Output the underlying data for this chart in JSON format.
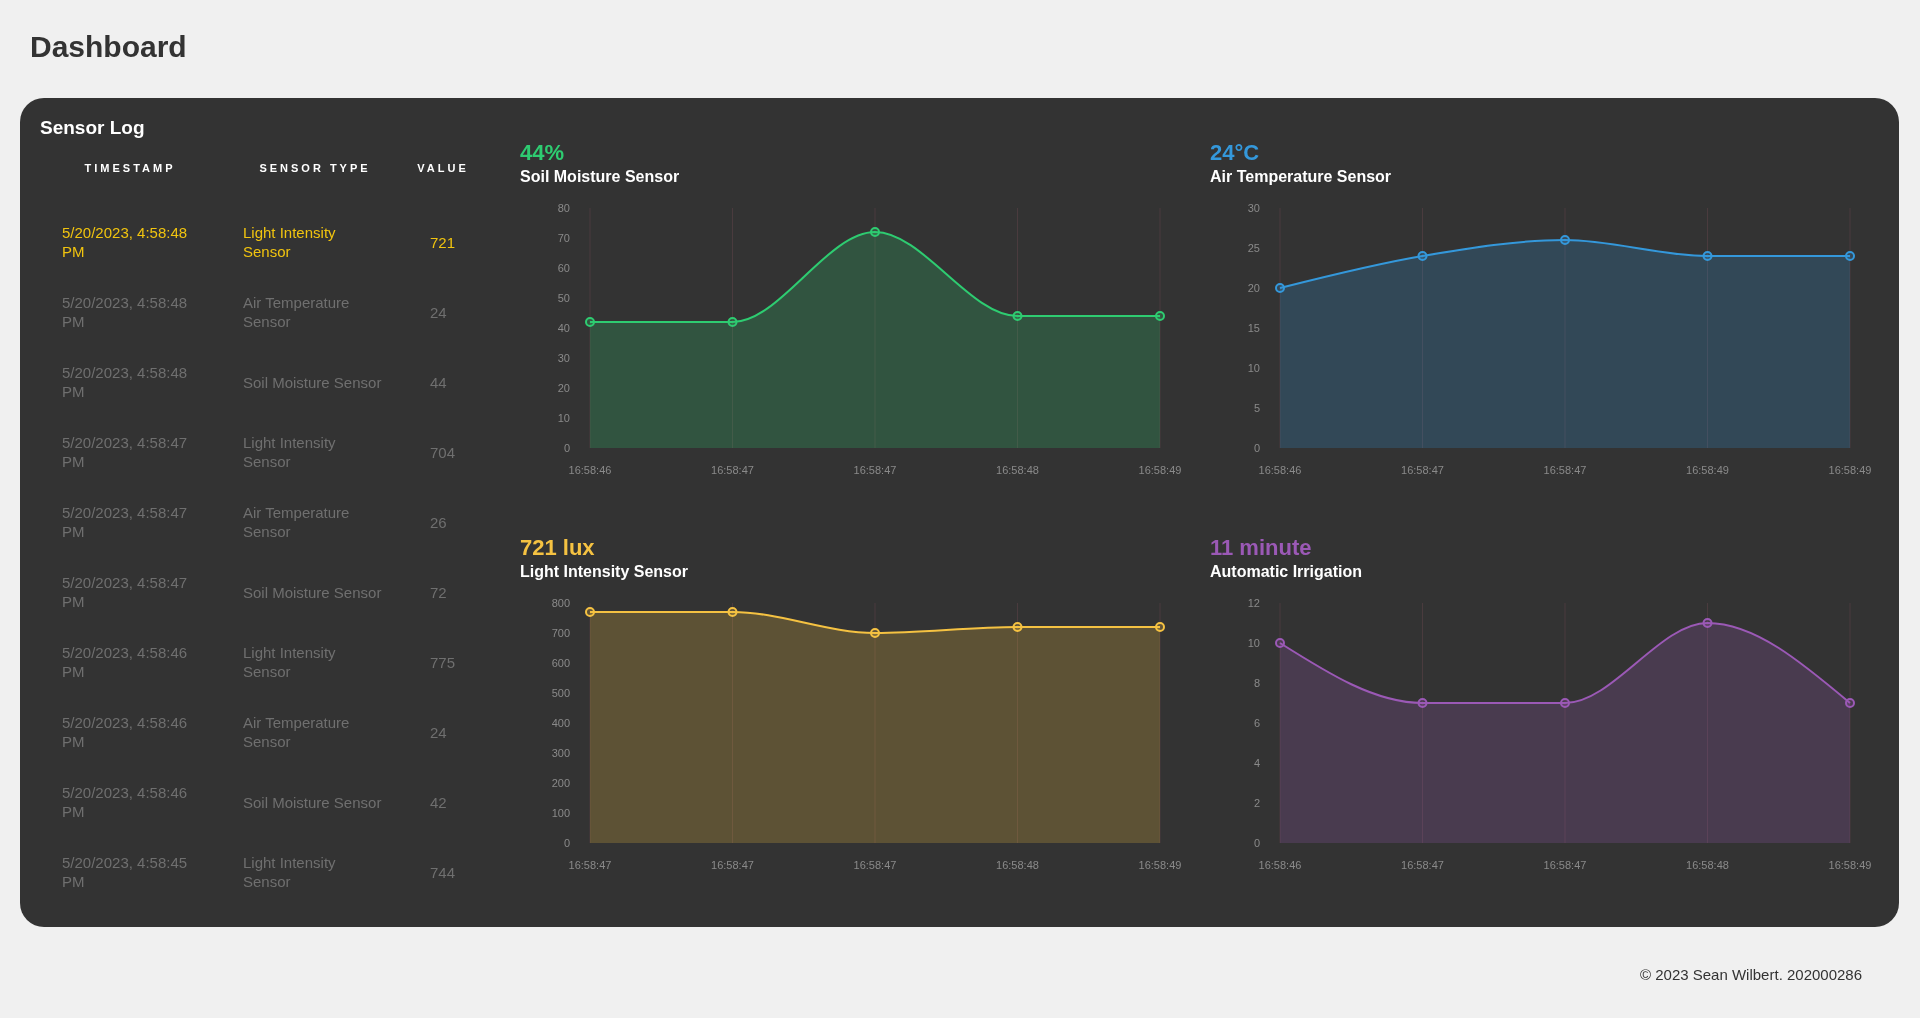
{
  "chart_data": [
    {
      "type": "other",
      "title": "Sensor Log",
      "annotations": [
        "Dashboard",
        "TIMESTAMP",
        "SENSOR TYPE",
        "VALUE",
        "5/20/2023, 4:58:48 PM",
        "Light Intensity Sensor",
        "721",
        "5/20/2023, 4:58:48 PM",
        "Air Temperature Sensor",
        "24",
        "5/20/2023, 4:58:48 PM",
        "Soil Moisture Sensor",
        "44",
        "5/20/2023, 4:58:47 PM",
        "Light Intensity Sensor",
        "704",
        "5/20/2023, 4:58:47 PM",
        "Air Temperature Sensor",
        "26",
        "5/20/2023, 4:58:47 PM",
        "Soil Moisture Sensor",
        "72",
        "5/20/2023, 4:58:46 PM",
        "Light Intensity Sensor",
        "775",
        "5/20/2023, 4:58:46 PM",
        "Air Temperature Sensor",
        "24",
        "5/20/2023, 4:58:46 PM",
        "Soil Moisture Sensor",
        "42",
        "5/20/2023, 4:58:45 PM",
        "Light Intensity Sensor",
        "744",
        "© 2023 Sean Wilbert. 202000286"
      ]
    },
    {
      "type": "area",
      "title": "44%",
      "subtitle": "Soil Moisture Sensor",
      "categories": [
        "16:58:46",
        "16:58:47",
        "16:58:47",
        "16:58:48",
        "16:58:49"
      ],
      "series": [
        {
          "color": "#2ecc71",
          "values": [
            42,
            42,
            72,
            44,
            44
          ]
        }
      ],
      "ylim": [
        0,
        80
      ],
      "yticks": [
        0,
        10,
        20,
        30,
        40,
        50,
        60,
        70,
        80
      ],
      "grid": "x",
      "marker": "circle"
    },
    {
      "type": "area",
      "title": "24°C",
      "subtitle": "Air Temperature Sensor",
      "categories": [
        "16:58:46",
        "16:58:47",
        "16:58:47",
        "16:58:49",
        "16:58:49"
      ],
      "series": [
        {
          "color": "#3498db",
          "values": [
            20,
            24,
            26,
            24,
            24
          ]
        }
      ],
      "ylim": [
        0,
        30
      ],
      "yticks": [
        0,
        5,
        10,
        15,
        20,
        25,
        30
      ],
      "grid": "x",
      "marker": "circle"
    },
    {
      "type": "area",
      "title": "721 lux",
      "subtitle": "Light Intensity Sensor",
      "categories": [
        "16:58:47",
        "16:58:47",
        "16:58:47",
        "16:58:48",
        "16:58:49"
      ],
      "series": [
        {
          "color": "#f5c242",
          "values": [
            770,
            770,
            700,
            720,
            720
          ]
        }
      ],
      "ylim": [
        0,
        800
      ],
      "yticks": [
        0,
        100,
        200,
        300,
        400,
        500,
        600,
        700,
        800
      ],
      "grid": "x",
      "marker": "circle"
    },
    {
      "type": "area",
      "title": "11 minute",
      "subtitle": "Automatic Irrigation",
      "categories": [
        "16:58:46",
        "16:58:47",
        "16:58:47",
        "16:58:48",
        "16:58:49"
      ],
      "series": [
        {
          "color": "#9b59b6",
          "values": [
            10,
            7,
            7,
            11,
            7
          ]
        }
      ],
      "ylim": [
        0,
        12
      ],
      "yticks": [
        0,
        2,
        4,
        6,
        8,
        10,
        12
      ],
      "grid": "x",
      "marker": "circle"
    }
  ]
}
